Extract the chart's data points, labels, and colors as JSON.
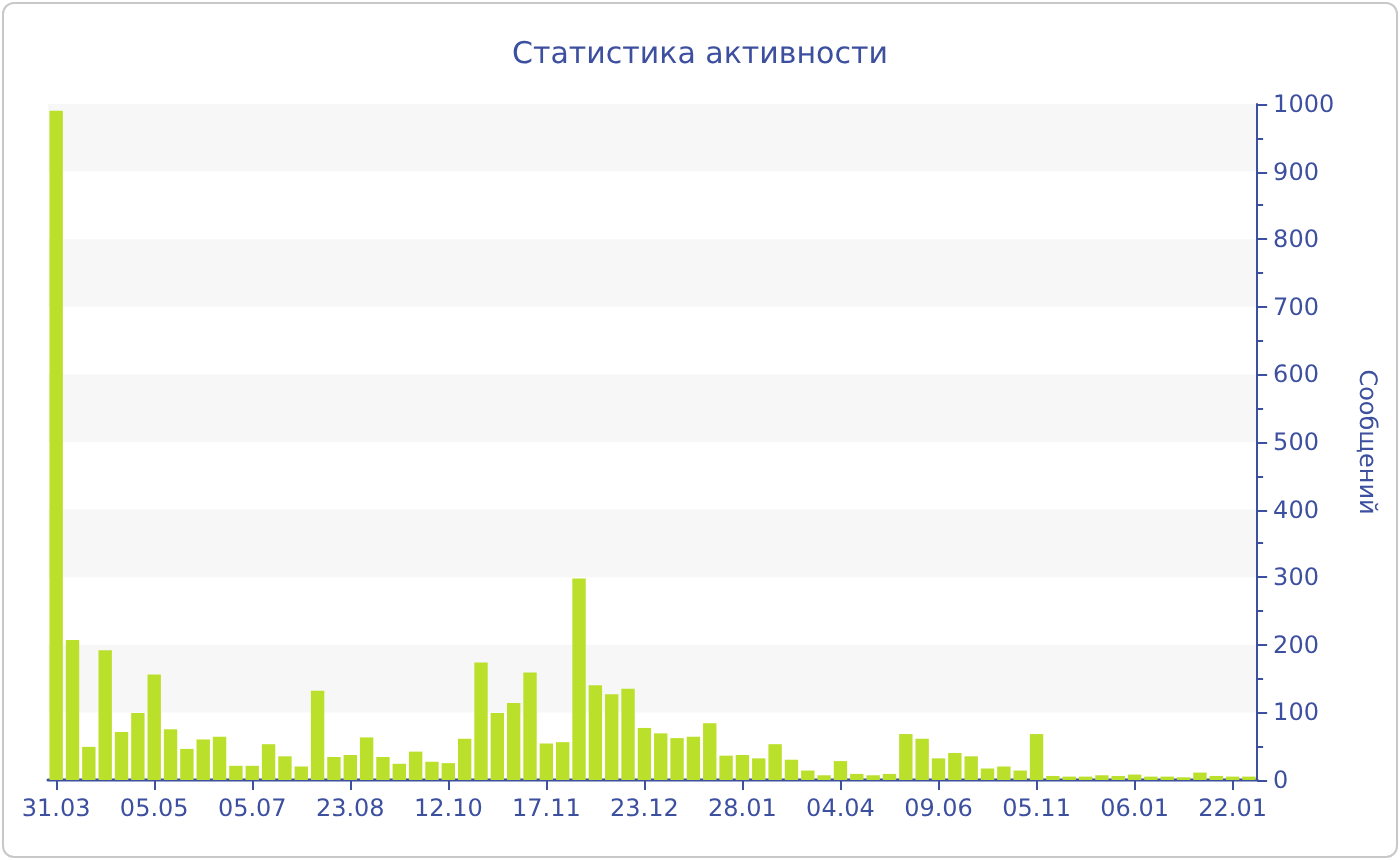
{
  "chart_data": {
    "type": "bar",
    "title": "Статистика активности",
    "ylabel": "Сообщений",
    "categories": [
      "31.03",
      null,
      null,
      null,
      null,
      null,
      "05.05",
      null,
      null,
      null,
      null,
      null,
      "05.07",
      null,
      null,
      null,
      null,
      null,
      "23.08",
      null,
      null,
      null,
      null,
      null,
      "12.10",
      null,
      null,
      null,
      null,
      null,
      "17.11",
      null,
      null,
      null,
      null,
      null,
      "23.12",
      null,
      null,
      null,
      null,
      null,
      "28.01",
      null,
      null,
      null,
      null,
      null,
      "04.04",
      null,
      null,
      null,
      null,
      null,
      "09.06",
      null,
      null,
      null,
      null,
      null,
      "05.11",
      null,
      null,
      null,
      null,
      null,
      "06.01",
      null,
      null,
      null,
      null,
      null,
      "22.01",
      null
    ],
    "values": [
      990,
      207,
      49,
      192,
      71,
      99,
      156,
      75,
      46,
      60,
      64,
      21,
      21,
      53,
      35,
      20,
      132,
      34,
      37,
      63,
      34,
      24,
      42,
      27,
      25,
      61,
      174,
      99,
      114,
      159,
      54,
      56,
      298,
      140,
      127,
      135,
      77,
      69,
      62,
      64,
      84,
      36,
      37,
      32,
      53,
      30,
      14,
      7,
      28,
      9,
      7,
      9,
      68,
      61,
      32,
      40,
      35,
      17,
      20,
      14,
      68,
      6,
      5,
      5,
      7,
      6,
      8,
      5,
      5,
      4,
      11,
      6,
      5,
      5
    ],
    "color": "#bbe02c",
    "ylim": [
      0,
      1000
    ],
    "yticks": [
      0,
      100,
      200,
      300,
      400,
      500,
      600,
      700,
      800,
      900,
      1000
    ],
    "bands": [
      {
        "axis": "y",
        "from": 100,
        "to": 200,
        "color": "#f7f7f7"
      },
      {
        "axis": "y",
        "from": 300,
        "to": 400,
        "color": "#f7f7f7"
      },
      {
        "axis": "y",
        "from": 500,
        "to": 600,
        "color": "#f7f7f7"
      },
      {
        "axis": "y",
        "from": 700,
        "to": 800,
        "color": "#f7f7f7"
      },
      {
        "axis": "y",
        "from": 900,
        "to": 1000,
        "color": "#f7f7f7"
      }
    ]
  }
}
